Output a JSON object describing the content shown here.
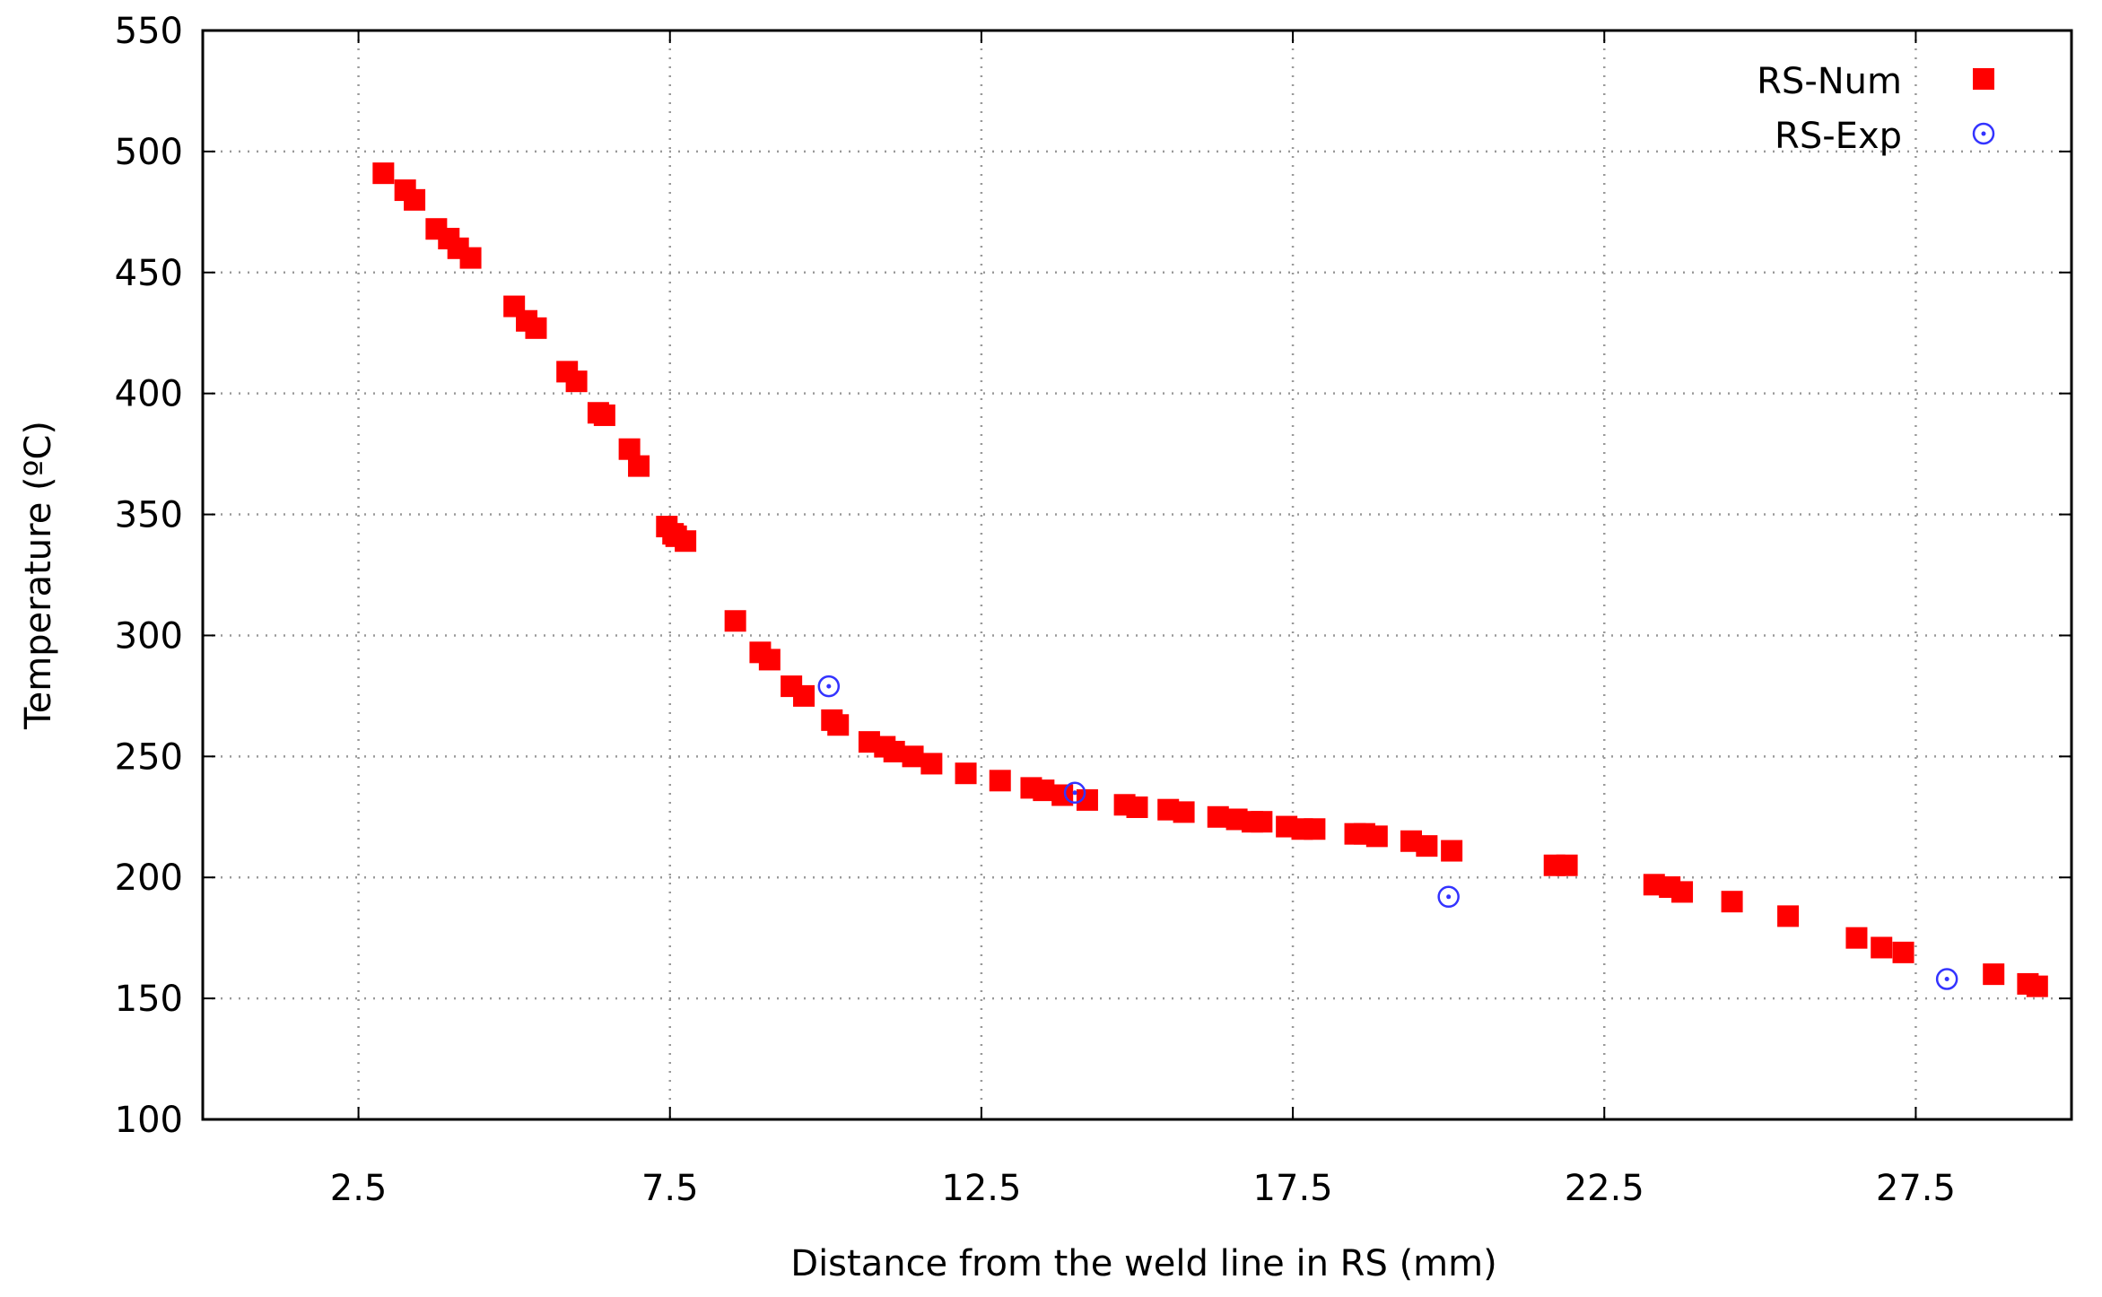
{
  "chart_data": {
    "type": "scatter",
    "title": "",
    "xlabel": "Distance from the weld line in RS (mm)",
    "ylabel": "Temperature (ºC)",
    "xlim": [
      0,
      30
    ],
    "ylim": [
      100,
      550
    ],
    "xticks": [
      "2.5",
      "7.5",
      "12.5",
      "17.5",
      "22.5",
      "27.5"
    ],
    "xtick_values": [
      2.5,
      7.5,
      12.5,
      17.5,
      22.5,
      27.5
    ],
    "yticks": [
      "100",
      "150",
      "200",
      "250",
      "300",
      "350",
      "400",
      "450",
      "500",
      "550"
    ],
    "ytick_values": [
      100,
      150,
      200,
      250,
      300,
      350,
      400,
      450,
      500,
      550
    ],
    "grid": true,
    "legend_position": "top-right",
    "series": [
      {
        "name": "RS-Num",
        "marker": "filled-square",
        "color": "#ff0000",
        "x": [
          2.9,
          3.25,
          3.4,
          3.75,
          3.95,
          4.1,
          4.3,
          5.0,
          5.2,
          5.35,
          5.85,
          6.0,
          6.35,
          6.45,
          6.85,
          7.0,
          7.45,
          7.55,
          7.6,
          7.75,
          8.55,
          8.95,
          9.1,
          9.45,
          9.65,
          10.1,
          10.2,
          10.7,
          10.95,
          11.1,
          11.4,
          11.7,
          12.25,
          12.8,
          13.3,
          13.5,
          13.8,
          14.2,
          14.8,
          15.0,
          15.5,
          15.75,
          16.3,
          16.6,
          16.85,
          17.0,
          17.4,
          17.65,
          17.85,
          18.5,
          18.65,
          18.85,
          19.4,
          19.65,
          20.05,
          21.7,
          21.9,
          23.3,
          23.55,
          23.75,
          24.55,
          25.45,
          26.55,
          26.95,
          27.3,
          28.75,
          29.3,
          29.45
        ],
        "y": [
          491,
          484,
          480,
          468,
          464,
          460,
          456,
          436,
          430,
          427,
          409,
          405,
          392,
          391,
          377,
          370,
          345,
          342,
          341,
          339,
          306,
          293,
          290,
          279,
          275,
          265,
          263,
          256,
          254,
          252,
          250,
          247,
          243,
          240,
          237,
          236,
          234,
          232,
          230,
          229,
          228,
          227,
          225,
          224,
          223,
          223,
          221,
          220,
          220,
          218,
          218,
          217,
          215,
          213,
          211,
          205,
          205,
          197,
          196,
          194,
          190,
          184,
          175,
          171,
          169,
          160,
          156,
          155
        ]
      },
      {
        "name": "RS-Exp",
        "marker": "open-circle",
        "color": "#3333ff",
        "x": [
          10.05,
          14.0,
          20.0,
          28.0
        ],
        "y": [
          279,
          235,
          192,
          158
        ]
      }
    ]
  }
}
